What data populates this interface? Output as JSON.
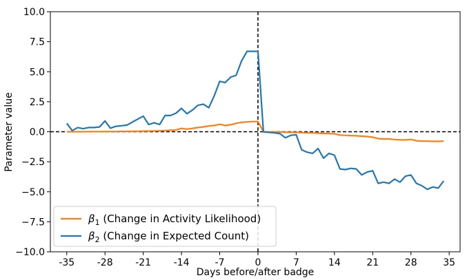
{
  "chart_data": {
    "type": "line",
    "title": "",
    "xlabel": "Days before/after badge",
    "ylabel": "Parameter value",
    "xlim": [
      -38,
      37
    ],
    "ylim": [
      -10,
      10
    ],
    "xticks": [
      -35,
      -28,
      -21,
      -14,
      -7,
      0,
      7,
      14,
      21,
      28,
      35
    ],
    "yticks": [
      -10.0,
      -7.5,
      -5.0,
      -2.5,
      0.0,
      2.5,
      5.0,
      7.5,
      10.0
    ],
    "ytick_labels": [
      "−10.0",
      "−7.5",
      "−5.0",
      "−2.5",
      "0.0",
      "2.5",
      "5.0",
      "7.5",
      "10.0"
    ],
    "xtick_labels": [
      "-35",
      "-28",
      "-21",
      "-14",
      "-7",
      "0",
      "7",
      "14",
      "21",
      "28",
      "35"
    ],
    "grid": false,
    "legend_position": "bottom-left",
    "reference_lines": [
      {
        "orientation": "horizontal",
        "value": 0,
        "style": "dashed",
        "color": "#000000"
      },
      {
        "orientation": "vertical",
        "value": 0,
        "style": "dashed",
        "color": "#000000"
      }
    ],
    "series": [
      {
        "name": "β",
        "name_sub": "1",
        "name_rest": " (Change in Activity Likelihood)",
        "color": "#ff7f0e",
        "x": [
          -35,
          -34,
          -33,
          -32,
          -31,
          -30,
          -29,
          -28,
          -27,
          -26,
          -25,
          -24,
          -23,
          -22,
          -21,
          -20,
          -19,
          -18,
          -17,
          -16,
          -15,
          -14,
          -13,
          -12,
          -11,
          -10,
          -9,
          -8,
          -7,
          -6,
          -5,
          -4,
          -3,
          -2,
          -1,
          0,
          1,
          2,
          3,
          4,
          5,
          6,
          7,
          8,
          9,
          10,
          11,
          12,
          13,
          14,
          15,
          16,
          17,
          18,
          19,
          20,
          21,
          22,
          23,
          24,
          25,
          26,
          27,
          28,
          29,
          30,
          31,
          32,
          33,
          34
        ],
        "y": [
          0.0,
          0.0,
          0.0,
          0.0,
          0.01,
          0.01,
          0.01,
          0.02,
          0.02,
          0.02,
          0.03,
          0.03,
          0.04,
          0.04,
          0.05,
          0.06,
          0.07,
          0.08,
          0.1,
          0.12,
          0.15,
          0.28,
          0.22,
          0.28,
          0.35,
          0.4,
          0.48,
          0.52,
          0.62,
          0.52,
          0.58,
          0.7,
          0.78,
          0.82,
          0.85,
          0.85,
          0.0,
          -0.01,
          -0.02,
          -0.03,
          -0.04,
          -0.05,
          -0.06,
          -0.07,
          -0.09,
          -0.1,
          -0.12,
          -0.14,
          -0.15,
          -0.17,
          -0.28,
          -0.3,
          -0.32,
          -0.34,
          -0.37,
          -0.4,
          -0.45,
          -0.58,
          -0.6,
          -0.6,
          -0.65,
          -0.68,
          -0.68,
          -0.64,
          -0.75,
          -0.78,
          -0.78,
          -0.8,
          -0.8,
          -0.78
        ]
      },
      {
        "name": "β",
        "name_sub": "2",
        "name_rest": " (Change in Expected Count)",
        "color": "#1f77b4",
        "x": [
          -35,
          -34,
          -33,
          -32,
          -31,
          -30,
          -29,
          -28,
          -27,
          -26,
          -25,
          -24,
          -23,
          -22,
          -21,
          -20,
          -19,
          -18,
          -17,
          -16,
          -15,
          -14,
          -13,
          -12,
          -11,
          -10,
          -9,
          -8,
          -7,
          -6,
          -5,
          -4,
          -3,
          -2,
          -1,
          0,
          1,
          2,
          3,
          4,
          5,
          6,
          7,
          8,
          9,
          10,
          11,
          12,
          13,
          14,
          15,
          16,
          17,
          18,
          19,
          20,
          21,
          22,
          23,
          24,
          25,
          26,
          27,
          28,
          29,
          30,
          31,
          32,
          33,
          34
        ],
        "y": [
          0.7,
          0.1,
          0.35,
          0.25,
          0.35,
          0.35,
          0.4,
          0.9,
          0.3,
          0.45,
          0.5,
          0.55,
          0.8,
          1.05,
          1.3,
          0.6,
          0.75,
          0.6,
          1.35,
          1.35,
          1.55,
          1.95,
          1.5,
          1.8,
          2.2,
          2.3,
          2.0,
          3.0,
          4.2,
          4.1,
          4.55,
          4.7,
          5.9,
          6.7,
          6.7,
          6.7,
          -0.02,
          -0.05,
          -0.1,
          -0.15,
          -0.5,
          -0.3,
          -0.25,
          -1.5,
          -1.7,
          -1.8,
          -1.4,
          -2.2,
          -1.8,
          -1.95,
          -3.1,
          -3.15,
          -3.05,
          -3.1,
          -3.6,
          -3.35,
          -3.25,
          -4.3,
          -4.2,
          -4.3,
          -3.95,
          -4.2,
          -3.7,
          -3.6,
          -4.3,
          -4.5,
          -4.8,
          -4.6,
          -4.7,
          -4.1
        ]
      }
    ]
  }
}
